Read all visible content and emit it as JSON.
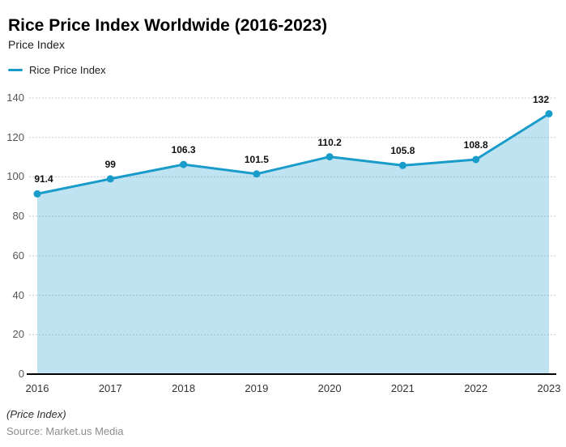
{
  "header": {
    "title": "Rice Price Index Worldwide (2016-2023)",
    "subtitle": "Price Index"
  },
  "legend": {
    "label": "Rice Price Index"
  },
  "chart_data": {
    "type": "area",
    "categories": [
      "2016",
      "2017",
      "2018",
      "2019",
      "2020",
      "2021",
      "2022",
      "2023"
    ],
    "series": [
      {
        "name": "Rice Price Index",
        "values": [
          91.4,
          99,
          106.3,
          101.5,
          110.2,
          105.8,
          108.8,
          132
        ]
      }
    ],
    "title": "Rice Price Index Worldwide (2016-2023)",
    "xlabel": "",
    "ylabel": "Price Index",
    "ylim": [
      0,
      140
    ],
    "ytick_step": 20,
    "grid": true,
    "gridline_style": "dotted",
    "legend_position": "top-left",
    "colors": {
      "line": "#1A9CCB",
      "fill": "#BEE3F1",
      "gridline": "#C9C9C9",
      "axis": "#000000"
    }
  },
  "footer": {
    "note": "(Price Index)",
    "source": "Source: Market.us Media"
  }
}
